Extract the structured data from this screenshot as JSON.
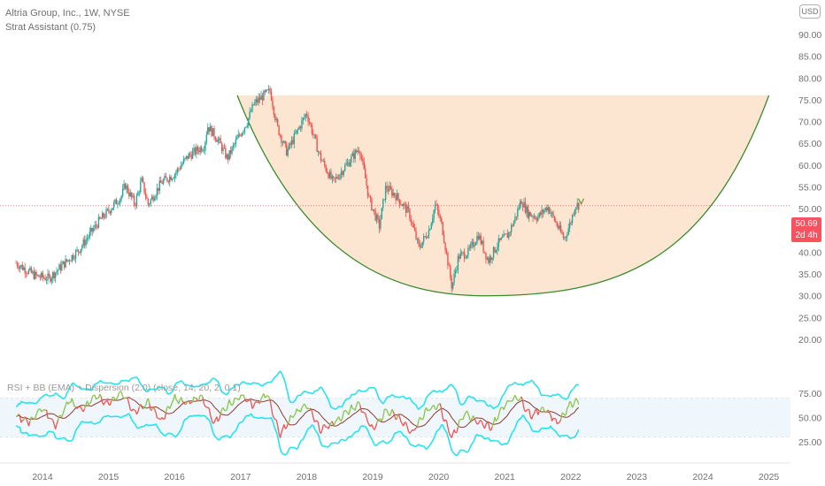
{
  "header": {
    "title": "Altria Group, Inc., 1W, NYSE",
    "indicator": "Strat Assistant (0.75)",
    "rsi_label": "RSI + BB (EMA) + Dispersion (2.0) (close, 14, 20, 2, 0.1)",
    "currency": "USD"
  },
  "price": {
    "last": "50.69",
    "countdown": "2d 4h"
  },
  "colors": {
    "up": "#26a69a",
    "down": "#ef5350",
    "cup_fill": "#fde3cc",
    "cup_edge": "#3a8a2e",
    "bb_band": "#27e3ef",
    "rsi_line": "#8bc34a",
    "price_line": "#f7525f"
  },
  "chart_data": [
    {
      "type": "candlestick",
      "title": "Altria Group, Inc., 1W, NYSE",
      "x_ticks": [
        "2014",
        "2015",
        "2016",
        "2017",
        "2018",
        "2019",
        "2020",
        "2021",
        "2022",
        "2023",
        "2024",
        "2025"
      ],
      "y_ticks": [
        "90.00",
        "85.00",
        "80.00",
        "75.00",
        "70.00",
        "65.00",
        "60.00",
        "55.00",
        "50.00",
        "45.00",
        "40.00",
        "35.00",
        "30.00",
        "25.00",
        "20.00"
      ],
      "ylim": [
        20,
        90
      ],
      "last_price": 50.69,
      "price_path": [
        [
          2013.6,
          37.5
        ],
        [
          2013.9,
          34.5
        ],
        [
          2014.1,
          34.0
        ],
        [
          2014.3,
          37.0
        ],
        [
          2014.55,
          40.5
        ],
        [
          2014.85,
          47.0
        ],
        [
          2015.0,
          49.5
        ],
        [
          2015.2,
          53.0
        ],
        [
          2015.25,
          55.5
        ],
        [
          2015.4,
          51.0
        ],
        [
          2015.5,
          56.5
        ],
        [
          2015.6,
          51.0
        ],
        [
          2015.8,
          56.0
        ],
        [
          2016.0,
          58.0
        ],
        [
          2016.2,
          62.0
        ],
        [
          2016.45,
          64.5
        ],
        [
          2016.5,
          69.0
        ],
        [
          2016.65,
          66.0
        ],
        [
          2016.8,
          61.5
        ],
        [
          2016.95,
          66.0
        ],
        [
          2017.1,
          70.0
        ],
        [
          2017.2,
          74.0
        ],
        [
          2017.35,
          76.0
        ],
        [
          2017.45,
          77.0
        ],
        [
          2017.55,
          69.0
        ],
        [
          2017.7,
          63.0
        ],
        [
          2017.8,
          66.0
        ],
        [
          2018.0,
          72.0
        ],
        [
          2018.2,
          62.0
        ],
        [
          2018.4,
          56.0
        ],
        [
          2018.6,
          60.0
        ],
        [
          2018.8,
          64.0
        ],
        [
          2018.95,
          52.0
        ],
        [
          2019.1,
          46.0
        ],
        [
          2019.2,
          55.0
        ],
        [
          2019.35,
          53.0
        ],
        [
          2019.55,
          49.0
        ],
        [
          2019.7,
          41.0
        ],
        [
          2019.85,
          45.0
        ],
        [
          2019.95,
          51.0
        ],
        [
          2020.05,
          46.0
        ],
        [
          2020.2,
          32.0
        ],
        [
          2020.3,
          39.0
        ],
        [
          2020.45,
          40.0
        ],
        [
          2020.6,
          44.0
        ],
        [
          2020.75,
          38.0
        ],
        [
          2020.9,
          42.0
        ],
        [
          2021.05,
          44.0
        ],
        [
          2021.15,
          47.5
        ],
        [
          2021.25,
          52.0
        ],
        [
          2021.35,
          49.0
        ],
        [
          2021.5,
          48.0
        ],
        [
          2021.65,
          50.5
        ],
        [
          2021.8,
          46.0
        ],
        [
          2021.9,
          43.0
        ],
        [
          2022.0,
          47.0
        ],
        [
          2022.07,
          51.0
        ],
        [
          2022.13,
          50.69
        ]
      ],
      "cup_pattern": {
        "left": [
          2016.95,
          76.0
        ],
        "bottom": [
          2020.7,
          30.0
        ],
        "right": [
          2025.0,
          76.0
        ]
      }
    },
    {
      "type": "line",
      "title": "RSI + BB (EMA) + Dispersion (2.0) (close, 14, 20, 2, 0.1)",
      "y_ticks": [
        "75.00",
        "50.00",
        "25.00"
      ],
      "ylim": [
        20,
        85
      ],
      "band": [
        30,
        70
      ],
      "rsi_path": [
        [
          2013.6,
          52
        ],
        [
          2013.8,
          45
        ],
        [
          2014.0,
          60
        ],
        [
          2014.2,
          42
        ],
        [
          2014.4,
          68
        ],
        [
          2014.6,
          58
        ],
        [
          2014.8,
          72
        ],
        [
          2015.0,
          64
        ],
        [
          2015.2,
          75
        ],
        [
          2015.4,
          55
        ],
        [
          2015.6,
          66
        ],
        [
          2015.8,
          46
        ],
        [
          2016.0,
          70
        ],
        [
          2016.2,
          65
        ],
        [
          2016.4,
          72
        ],
        [
          2016.6,
          45
        ],
        [
          2016.8,
          62
        ],
        [
          2017.0,
          72
        ],
        [
          2017.2,
          62
        ],
        [
          2017.4,
          74
        ],
        [
          2017.6,
          33
        ],
        [
          2017.8,
          52
        ],
        [
          2018.0,
          64
        ],
        [
          2018.2,
          38
        ],
        [
          2018.4,
          44
        ],
        [
          2018.6,
          55
        ],
        [
          2018.8,
          64
        ],
        [
          2019.0,
          36
        ],
        [
          2019.2,
          58
        ],
        [
          2019.4,
          50
        ],
        [
          2019.6,
          34
        ],
        [
          2019.8,
          56
        ],
        [
          2020.0,
          64
        ],
        [
          2020.2,
          30
        ],
        [
          2020.4,
          55
        ],
        [
          2020.6,
          44
        ],
        [
          2020.8,
          40
        ],
        [
          2021.0,
          64
        ],
        [
          2021.2,
          72
        ],
        [
          2021.4,
          52
        ],
        [
          2021.6,
          60
        ],
        [
          2021.8,
          44
        ],
        [
          2022.0,
          64
        ],
        [
          2022.13,
          68
        ]
      ]
    }
  ]
}
